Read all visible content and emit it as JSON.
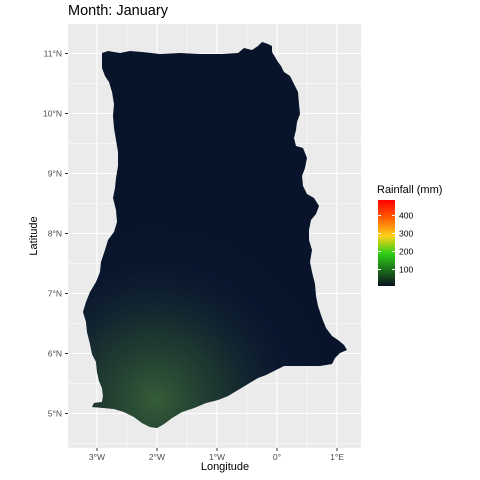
{
  "title": "Month: January",
  "chart_data": {
    "type": "raster map",
    "region": "Ghana",
    "variable": "Rainfall (mm)",
    "month": "January",
    "xlabel": "Longitude",
    "ylabel": "Latitude",
    "x_ticks": [
      "3°W",
      "2°W",
      "1°W",
      "0°",
      "1°E"
    ],
    "x_tick_values": [
      -3,
      -2,
      -1,
      0,
      1
    ],
    "y_ticks": [
      "5°N",
      "6°N",
      "7°N",
      "8°N",
      "9°N",
      "10°N",
      "11°N"
    ],
    "y_tick_values": [
      5,
      6,
      7,
      8,
      9,
      10,
      11
    ],
    "xlim": [
      -3.45,
      1.4
    ],
    "ylim": [
      4.5,
      11.25
    ],
    "legend": {
      "title": "Rainfall (mm)",
      "breaks": [
        "100",
        "200",
        "300",
        "400"
      ],
      "break_values": [
        100,
        200,
        300,
        400
      ],
      "range": [
        0,
        490
      ],
      "colors": [
        "#0a1120",
        "#1c6b1a",
        "#2fd016",
        "#ffd21a",
        "#ff5a00",
        "#ff0000"
      ]
    },
    "pattern": "Very low rainfall across most of the country; slight increase (dark green tint) toward the southwest coast"
  }
}
